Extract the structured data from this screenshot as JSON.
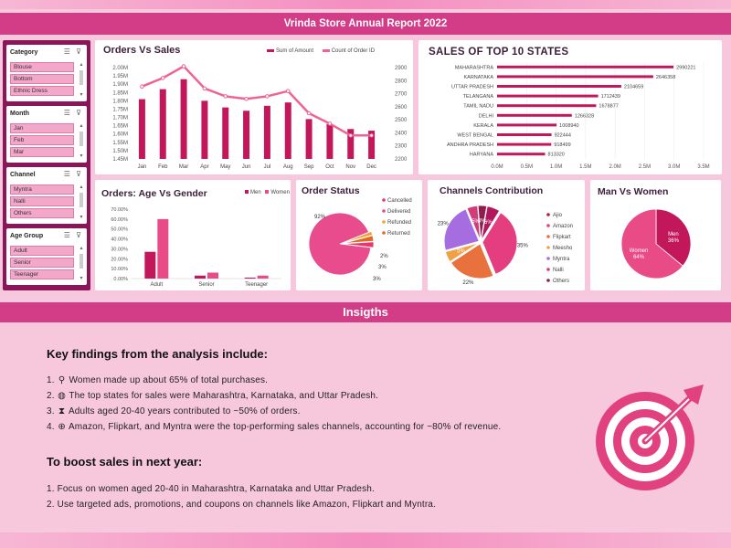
{
  "header": {
    "title": "Vrinda Store Annual Report 2022"
  },
  "slicers": [
    {
      "title": "Category",
      "items": [
        "Blouse",
        "Bottom",
        "Ethnic Dress"
      ]
    },
    {
      "title": "Month",
      "items": [
        "Jan",
        "Feb",
        "Mar"
      ]
    },
    {
      "title": "Channel",
      "items": [
        "Myntra",
        "Nalli",
        "Others"
      ]
    },
    {
      "title": "Age Group",
      "items": [
        "Adult",
        "Senior",
        "Teenager"
      ]
    }
  ],
  "orders_sales": {
    "title": "Orders Vs Sales",
    "legend": [
      "Sum of Amount",
      "Count of Order ID"
    ]
  },
  "top_states": {
    "title": "SALES OF TOP 10 STATES"
  },
  "age_gender": {
    "title": "Orders: Age Vs Gender",
    "legend": [
      "Men",
      "Women"
    ]
  },
  "order_status": {
    "title": "Order Status",
    "legend": [
      "Cancelled",
      "Delivered",
      "Refunded",
      "Returned"
    ]
  },
  "channels": {
    "title": "Channels Contribution",
    "legend": [
      "Ajio",
      "Amazon",
      "Flipkart",
      "Meesho",
      "Myntra",
      "Nalli",
      "Others"
    ]
  },
  "men_women": {
    "title": "Man Vs Women"
  },
  "insights": {
    "title": "Insigths",
    "key_heading": "Key findings from the analysis include:",
    "findings": [
      {
        "num": "1.",
        "icon": "map-pin-icon",
        "text": "Women made up about 65% of total purchases."
      },
      {
        "num": "2.",
        "icon": "globe-icon",
        "text": "The top states for sales were Maharashtra, Karnataka, and Uttar Pradesh."
      },
      {
        "num": "3.",
        "icon": "hourglass-icon",
        "text": "Adults aged 20-40 years contributed to ~50% of orders."
      },
      {
        "num": "4.",
        "icon": "web-icon",
        "text": "Amazon, Flipkart, and Myntra were the top-performing sales channels, accounting for ~80% of revenue."
      }
    ],
    "boost_heading": "To boost sales in next year:",
    "actions": [
      "1. Focus on women aged 20-40 in Maharashtra, Karnataka and Uttar Pradesh.",
      "2. Use targeted ads, promotions, and coupons on channels like Amazon, Flipkart and Myntra."
    ]
  },
  "colors": {
    "accent": "#d33c86",
    "bar": "#c2185b",
    "line": "#f06292",
    "dark": "#8a1559"
  },
  "chart_data": [
    {
      "type": "bar",
      "title": "Orders Vs Sales",
      "categories": [
        "Jan",
        "Feb",
        "Mar",
        "Apr",
        "May",
        "Jun",
        "Jul",
        "Aug",
        "Sep",
        "Oct",
        "Nov",
        "Dec"
      ],
      "series": [
        {
          "name": "Sum of Amount",
          "values": [
            1.81,
            1.87,
            1.93,
            1.8,
            1.76,
            1.74,
            1.77,
            1.79,
            1.69,
            1.66,
            1.63,
            1.62
          ],
          "axis": "left"
        },
        {
          "name": "Count of Order ID",
          "type": "line",
          "values": [
            2755,
            2820,
            2910,
            2740,
            2680,
            2660,
            2680,
            2720,
            2550,
            2470,
            2380,
            2380
          ],
          "axis": "right"
        }
      ],
      "yticks_left": [
        "1.45M",
        "1.50M",
        "1.55M",
        "1.60M",
        "1.65M",
        "1.70M",
        "1.75M",
        "1.80M",
        "1.85M",
        "1.90M",
        "1.95M",
        "2.00M"
      ],
      "ylim_left": [
        1.45,
        2.0
      ],
      "yticks_right": [
        "2200",
        "2300",
        "2400",
        "2500",
        "2600",
        "2700",
        "2800",
        "2900"
      ],
      "ylim_right": [
        2200,
        2900
      ]
    },
    {
      "type": "bar",
      "orientation": "horizontal",
      "title": "SALES OF TOP 10 STATES",
      "categories": [
        "MAHARASHTRA",
        "KARNATAKA",
        "UTTAR PRADESH",
        "TELANGANA",
        "TAMIL NADU",
        "DELHI",
        "KERALA",
        "WEST BENGAL",
        "ANDHRA PRADESH",
        "HARYANA"
      ],
      "values": [
        2990221,
        2646358,
        2104659,
        1712439,
        1678877,
        1266328,
        1008940,
        922444,
        918499,
        813320
      ],
      "xticks": [
        "0.0M",
        "0.5M",
        "1.0M",
        "1.5M",
        "2.0M",
        "2.5M",
        "3.0M",
        "3.5M"
      ],
      "xlim": [
        0,
        3500000
      ]
    },
    {
      "type": "bar",
      "title": "Orders: Age Vs Gender",
      "categories": [
        "Adult",
        "Senior",
        "Teenager"
      ],
      "series": [
        {
          "name": "Men",
          "values": [
            27,
            3,
            1
          ]
        },
        {
          "name": "Women",
          "values": [
            60,
            6,
            3
          ]
        }
      ],
      "yticks": [
        "0.00%",
        "10.00%",
        "20.00%",
        "30.00%",
        "40.00%",
        "50.00%",
        "60.00%",
        "70.00%"
      ],
      "ylim": [
        0,
        70
      ]
    },
    {
      "type": "pie",
      "title": "Order Status",
      "labels": [
        "Cancelled",
        "Delivered",
        "Refunded",
        "Returned"
      ],
      "values": [
        3,
        92,
        2,
        3
      ],
      "colors": [
        "#e8366f",
        "#e84c8c",
        "#f2a238",
        "#e06a24"
      ],
      "data_labels": [
        "3%",
        "92%",
        "2%",
        "3%"
      ]
    },
    {
      "type": "pie",
      "title": "Channels Contribution",
      "labels": [
        "Ajio",
        "Amazon",
        "Flipkart",
        "Meesho",
        "Myntra",
        "Nalli",
        "Others"
      ],
      "values": [
        6,
        35,
        22,
        5,
        23,
        5,
        4
      ],
      "colors": [
        "#b0185b",
        "#e43d80",
        "#e8713d",
        "#f0a045",
        "#a56de0",
        "#d13d7a",
        "#8e1d4e"
      ],
      "data_labels": [
        "6%",
        "35%",
        "22%",
        "5%",
        "23%",
        "5%",
        "4%"
      ]
    },
    {
      "type": "pie",
      "title": "Man Vs Women",
      "labels": [
        "Men",
        "Women"
      ],
      "values": [
        36,
        64
      ],
      "colors": [
        "#c2185b",
        "#e94b87"
      ],
      "data_labels": [
        "Men\n36%",
        "Women\n64%"
      ]
    }
  ]
}
